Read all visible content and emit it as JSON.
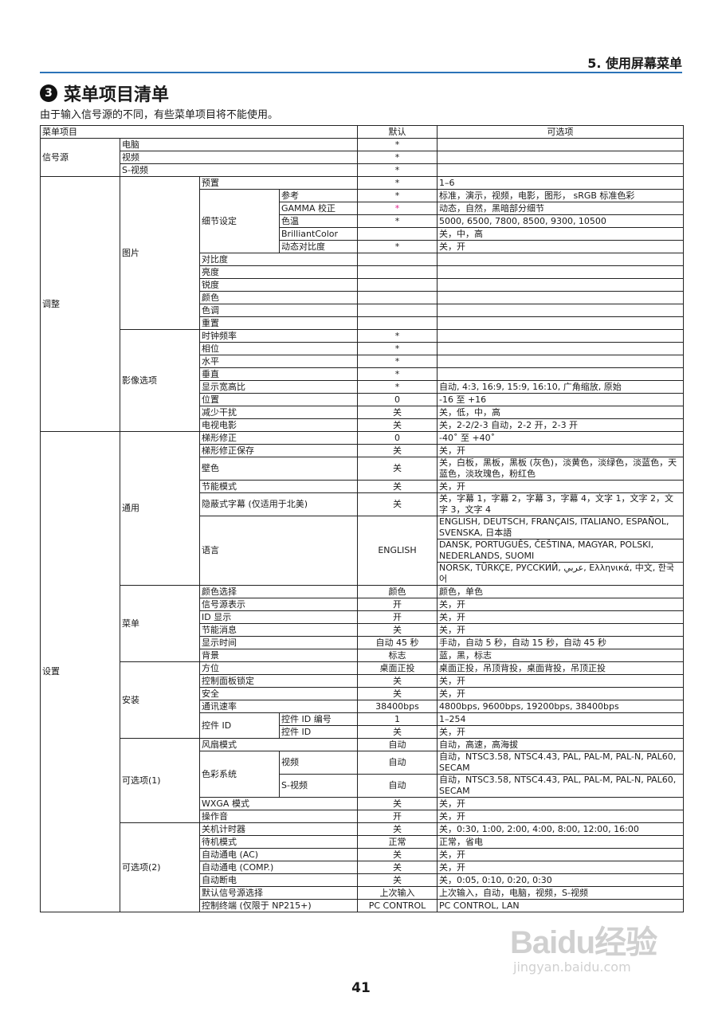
{
  "header": {
    "chapter": "5. 使用屏幕菜单",
    "section_number": "3",
    "title": "菜单项目清单",
    "subtitle": "由于输入信号源的不同，有些菜单项目将不能使用。"
  },
  "colors": {
    "rule": "#2b73b8",
    "accent_asterisk": "#e0208a"
  },
  "table": {
    "rows": [
      [
        {
          "t": "菜单项目",
          "cs": 4
        },
        {
          "t": "默认",
          "k": "h"
        },
        {
          "t": "可选项",
          "k": "h"
        }
      ],
      [
        {
          "t": "信号源",
          "rs": 3
        },
        {
          "t": "电脑",
          "cs": 3
        },
        {
          "t": "*",
          "k": "d"
        },
        {
          "t": ""
        }
      ],
      [
        {
          "t": "视频",
          "cs": 3
        },
        {
          "t": "*",
          "k": "d"
        },
        {
          "t": ""
        }
      ],
      [
        {
          "t": "S-视频",
          "cs": 3
        },
        {
          "t": "*",
          "k": "d"
        },
        {
          "t": ""
        }
      ],
      [
        {
          "t": "调整",
          "rs": 20
        },
        {
          "t": "图片",
          "rs": 12
        },
        {
          "t": "预置",
          "cs": 2
        },
        {
          "t": "*",
          "k": "d"
        },
        {
          "t": "1–6"
        }
      ],
      [
        {
          "t": "细节设定",
          "rs": 5
        },
        {
          "t": "参考"
        },
        {
          "t": "*",
          "k": "d"
        },
        {
          "t": "标准，演示，视频，电影，图形， sRGB 标准色彩"
        }
      ],
      [
        {
          "t": "GAMMA 校正"
        },
        {
          "t": "*",
          "k": "d",
          "pink": true
        },
        {
          "t": "动态，自然，黑暗部分细节"
        }
      ],
      [
        {
          "t": "色温"
        },
        {
          "t": "*",
          "k": "d"
        },
        {
          "t": "5000, 6500, 7800, 8500, 9300, 10500"
        }
      ],
      [
        {
          "t": "BrilliantColor"
        },
        {
          "t": "",
          "k": "d"
        },
        {
          "t": "关，中，高"
        }
      ],
      [
        {
          "t": "动态对比度"
        },
        {
          "t": "*",
          "k": "d"
        },
        {
          "t": "关，开"
        }
      ],
      [
        {
          "t": "对比度",
          "cs": 2
        },
        {
          "t": "",
          "k": "d"
        },
        {
          "t": ""
        }
      ],
      [
        {
          "t": "亮度",
          "cs": 2
        },
        {
          "t": "",
          "k": "d"
        },
        {
          "t": ""
        }
      ],
      [
        {
          "t": "锐度",
          "cs": 2
        },
        {
          "t": "",
          "k": "d"
        },
        {
          "t": ""
        }
      ],
      [
        {
          "t": "颜色",
          "cs": 2
        },
        {
          "t": "",
          "k": "d"
        },
        {
          "t": ""
        }
      ],
      [
        {
          "t": "色调",
          "cs": 2
        },
        {
          "t": "",
          "k": "d"
        },
        {
          "t": ""
        }
      ],
      [
        {
          "t": "重置",
          "cs": 2
        },
        {
          "t": "",
          "k": "d"
        },
        {
          "t": ""
        }
      ],
      [
        {
          "t": "影像选项",
          "rs": 8
        },
        {
          "t": "时钟频率",
          "cs": 2
        },
        {
          "t": "*",
          "k": "d"
        },
        {
          "t": ""
        }
      ],
      [
        {
          "t": "相位",
          "cs": 2
        },
        {
          "t": "*",
          "k": "d"
        },
        {
          "t": ""
        }
      ],
      [
        {
          "t": "水平",
          "cs": 2
        },
        {
          "t": "*",
          "k": "d"
        },
        {
          "t": ""
        }
      ],
      [
        {
          "t": "垂直",
          "cs": 2
        },
        {
          "t": "*",
          "k": "d"
        },
        {
          "t": ""
        }
      ],
      [
        {
          "t": "显示宽高比",
          "cs": 2
        },
        {
          "t": "*",
          "k": "d"
        },
        {
          "t": "自动, 4:3, 16:9, 15:9, 16:10, 广角缩放, 原始"
        }
      ],
      [
        {
          "t": "位置",
          "cs": 2
        },
        {
          "t": "0",
          "k": "d"
        },
        {
          "t": " -16 至 +16"
        }
      ],
      [
        {
          "t": "减少干扰",
          "cs": 2
        },
        {
          "t": "关",
          "k": "d"
        },
        {
          "t": "关，低，中，高"
        }
      ],
      [
        {
          "t": "电视电影",
          "cs": 2
        },
        {
          "t": "关",
          "k": "d"
        },
        {
          "t": "关，2-2/2-3 自动，2-2 开，2-3 开"
        }
      ],
      [
        {
          "t": "设置",
          "rs": 32
        },
        {
          "t": "通用",
          "rs": 8
        },
        {
          "t": "梯形修正",
          "cs": 2
        },
        {
          "t": "0",
          "k": "d"
        },
        {
          "t": "-40˚ 至 +40˚"
        }
      ],
      [
        {
          "t": "梯形修正保存",
          "cs": 2
        },
        {
          "t": "关",
          "k": "d"
        },
        {
          "t": "关，开"
        }
      ],
      [
        {
          "t": "壁色",
          "cs": 2
        },
        {
          "t": "关",
          "k": "d"
        },
        {
          "t": "关，白板，黑板，黑板 (灰色)，淡黄色，淡绿色，淡蓝色，天蓝色，淡玫瑰色，粉红色"
        }
      ],
      [
        {
          "t": "节能模式",
          "cs": 2
        },
        {
          "t": "关",
          "k": "d"
        },
        {
          "t": "关，开"
        }
      ],
      [
        {
          "t": "隐蔽式字幕 (仅适用于北美)",
          "cs": 2
        },
        {
          "t": "关",
          "k": "d"
        },
        {
          "t": "关，字幕 1，字幕 2，字幕 3，字幕 4，文字 1，文字 2，文字 3，文字 4"
        }
      ],
      [
        {
          "t": "语言",
          "cs": 2,
          "rs": 3
        },
        {
          "t": "ENGLISH",
          "k": "d",
          "rs": 3
        },
        {
          "t": "ENGLISH, DEUTSCH, FRANÇAIS, ITALIANO, ESPAÑOL, SVENSKA, 日本語"
        }
      ],
      [
        {
          "t": "DANSK, PORTUGUÊS, ČEŠTINA, MAGYAR, POLSKI, NEDERLANDS, SUOMI"
        }
      ],
      [
        {
          "t": "NORSK, TÜRKÇE, РУССКИЙ, عربي, Ελληνικά, 中文, 한국어"
        }
      ],
      [
        {
          "t": "菜单",
          "rs": 6
        },
        {
          "t": "颜色选择",
          "cs": 2
        },
        {
          "t": "颜色",
          "k": "d"
        },
        {
          "t": "颜色，单色"
        }
      ],
      [
        {
          "t": "信号源表示",
          "cs": 2
        },
        {
          "t": "开",
          "k": "d"
        },
        {
          "t": "关，开"
        }
      ],
      [
        {
          "t": "ID 显示",
          "cs": 2
        },
        {
          "t": "开",
          "k": "d"
        },
        {
          "t": "关，开"
        }
      ],
      [
        {
          "t": "节能消息",
          "cs": 2
        },
        {
          "t": "关",
          "k": "d"
        },
        {
          "t": "关，开"
        }
      ],
      [
        {
          "t": "显示时间",
          "cs": 2
        },
        {
          "t": "自动 45 秒",
          "k": "d"
        },
        {
          "t": "手动，自动 5 秒，自动 15 秒，自动 45 秒"
        }
      ],
      [
        {
          "t": "背景",
          "cs": 2
        },
        {
          "t": "标志",
          "k": "d"
        },
        {
          "t": "蓝，黑，标志"
        }
      ],
      [
        {
          "t": "安装",
          "rs": 6
        },
        {
          "t": "方位",
          "cs": 2
        },
        {
          "t": "桌面正投",
          "k": "d"
        },
        {
          "t": "桌面正投，吊顶背投，桌面背投，吊顶正投"
        }
      ],
      [
        {
          "t": "控制面板锁定",
          "cs": 2
        },
        {
          "t": "关",
          "k": "d"
        },
        {
          "t": "关，开"
        }
      ],
      [
        {
          "t": "安全",
          "cs": 2
        },
        {
          "t": "关",
          "k": "d"
        },
        {
          "t": "关，开"
        }
      ],
      [
        {
          "t": "通讯速率",
          "cs": 2
        },
        {
          "t": "38400bps",
          "k": "d"
        },
        {
          "t": "4800bps, 9600bps, 19200bps, 38400bps"
        }
      ],
      [
        {
          "t": "控件 ID",
          "rs": 2
        },
        {
          "t": "控件 ID 编号"
        },
        {
          "t": "1",
          "k": "d"
        },
        {
          "t": "1–254"
        }
      ],
      [
        {
          "t": "控件 ID"
        },
        {
          "t": "关",
          "k": "d"
        },
        {
          "t": "关，开"
        }
      ],
      [
        {
          "t": "可选项(1)",
          "rs": 5
        },
        {
          "t": "风扇模式",
          "cs": 2
        },
        {
          "t": "自动",
          "k": "d"
        },
        {
          "t": "自动，高速，高海拔"
        }
      ],
      [
        {
          "t": "色彩系统",
          "rs": 2
        },
        {
          "t": "视频"
        },
        {
          "t": "自动",
          "k": "d"
        },
        {
          "t": "自动，NTSC3.58, NTSC4.43, PAL, PAL-M, PAL-N, PAL60, SECAM"
        }
      ],
      [
        {
          "t": "S-视频"
        },
        {
          "t": "自动",
          "k": "d"
        },
        {
          "t": "自动，NTSC3.58, NTSC4.43, PAL, PAL-M, PAL-N, PAL60, SECAM"
        }
      ],
      [
        {
          "t": "WXGA 模式",
          "cs": 2
        },
        {
          "t": "关",
          "k": "d"
        },
        {
          "t": "关，开"
        }
      ],
      [
        {
          "t": "操作音",
          "cs": 2
        },
        {
          "t": "开",
          "k": "d"
        },
        {
          "t": "关，开"
        }
      ],
      [
        {
          "t": "可选项(2)",
          "rs": 7
        },
        {
          "t": "关机计时器",
          "cs": 2
        },
        {
          "t": "关",
          "k": "d"
        },
        {
          "t": "关，0:30, 1:00, 2:00, 4:00, 8:00, 12:00, 16:00"
        }
      ],
      [
        {
          "t": "待机模式",
          "cs": 2
        },
        {
          "t": "正常",
          "k": "d"
        },
        {
          "t": "正常，省电"
        }
      ],
      [
        {
          "t": "自动通电 (AC)",
          "cs": 2
        },
        {
          "t": "关",
          "k": "d"
        },
        {
          "t": "关，开"
        }
      ],
      [
        {
          "t": "自动通电 (COMP.)",
          "cs": 2
        },
        {
          "t": "关",
          "k": "d"
        },
        {
          "t": "关，开"
        }
      ],
      [
        {
          "t": "自动断电",
          "cs": 2
        },
        {
          "t": "关",
          "k": "d"
        },
        {
          "t": "关，0:05, 0:10, 0:20, 0:30"
        }
      ],
      [
        {
          "t": "默认信号源选择",
          "cs": 2
        },
        {
          "t": "上次输入",
          "k": "d"
        },
        {
          "t": "上次输入，自动，电脑，视频，S-视频"
        }
      ],
      [
        {
          "t": "控制终端 (仅限于 NP215+)",
          "cs": 2
        },
        {
          "t": "PC CONTROL",
          "k": "d"
        },
        {
          "t": "PC CONTROL, LAN"
        }
      ]
    ]
  },
  "page_number": "41",
  "watermark": {
    "logo": "Baidu经验",
    "url": "jingyan.baidu.com"
  }
}
